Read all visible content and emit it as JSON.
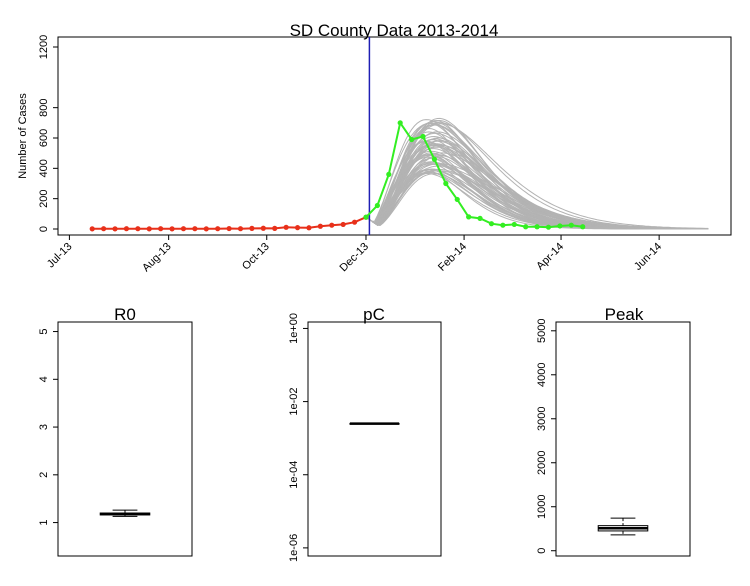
{
  "chart_data": [
    {
      "type": "line",
      "title": "SD County Data 2013-2014",
      "xlabel": "",
      "ylabel": "Number of Cases",
      "x_axis": {
        "unit": "weeks since Jul-13",
        "tick_labels": [
          "Jul-13",
          "Aug-13",
          "Oct-13",
          "Dec-13",
          "Feb-14",
          "Apr-14",
          "Jun-14"
        ],
        "tick_positions": [
          0,
          8.7,
          17.3,
          26.0,
          34.6,
          43.1,
          51.7
        ],
        "range": [
          -1,
          58
        ]
      },
      "ylim": [
        0,
        1200
      ],
      "y_ticks": [
        0,
        200,
        400,
        600,
        800,
        1200
      ],
      "grid": false,
      "legend": "none",
      "colors": {
        "observed_fit": "#e8301a",
        "observed_forecast": "#33ee22",
        "simulations": "#b3b3b3",
        "current_week_line": "#1f1fb4"
      },
      "current_week_x": 26.3,
      "observed_fit": {
        "x": [
          2,
          3,
          4,
          5,
          6,
          7,
          8,
          9,
          10,
          11,
          12,
          13,
          14,
          15,
          16,
          17,
          18,
          19,
          20,
          21,
          22,
          23,
          24,
          25,
          26
        ],
        "y": [
          1,
          2,
          1,
          2,
          2,
          1,
          2,
          1,
          2,
          2,
          1,
          2,
          3,
          2,
          4,
          5,
          4,
          11,
          9,
          8,
          18,
          25,
          30,
          45,
          78
        ]
      },
      "observed_forecast": {
        "x": [
          26,
          27,
          28,
          29,
          30,
          31,
          32,
          33,
          34,
          35,
          36,
          37,
          38,
          39,
          40,
          41,
          42,
          43,
          44,
          45
        ],
        "y": [
          78,
          155,
          360,
          700,
          590,
          610,
          460,
          300,
          195,
          80,
          70,
          35,
          25,
          30,
          15,
          15,
          12,
          20,
          25,
          15
        ]
      },
      "simulations": {
        "count": 60,
        "start_x": 26,
        "end_x": 56,
        "peak_x_range": [
          31.2,
          32.6
        ],
        "peak_y_range": [
          360,
          730
        ]
      }
    },
    {
      "type": "boxplot",
      "title": "R0",
      "ylim": [
        0.3,
        5.2
      ],
      "y_ticks": [
        1,
        2,
        3,
        4,
        5
      ],
      "box": {
        "min": 1.13,
        "q1": 1.16,
        "median": 1.18,
        "q3": 1.2,
        "max": 1.26
      }
    },
    {
      "type": "boxplot",
      "title": "pC",
      "log_scale": true,
      "y_ticks": [
        1e-06,
        0.0001,
        0.01,
        1
      ],
      "y_tick_labels": [
        "1e-06",
        "1e-04",
        "1e-02",
        "1e+00"
      ],
      "ylim": [
        6e-07,
        1.5
      ],
      "box": {
        "min": 0.0025,
        "q1": 0.0025,
        "median": 0.0025,
        "q3": 0.0025,
        "max": 0.0025
      }
    },
    {
      "type": "boxplot",
      "title": "Peak",
      "ylim": [
        -120,
        5200
      ],
      "y_ticks": [
        0,
        1000,
        2000,
        3000,
        4000,
        5000
      ],
      "box": {
        "min": 360,
        "q1": 450,
        "median": 510,
        "q3": 570,
        "max": 740
      }
    }
  ]
}
